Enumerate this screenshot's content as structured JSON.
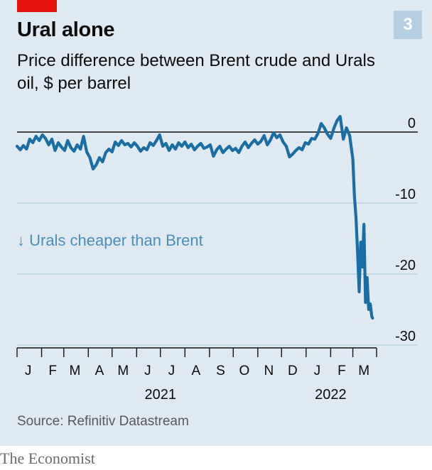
{
  "header": {
    "title": "Ural alone",
    "subtitle": "Price difference between Brent crude and Urals oil, $ per barrel",
    "badge": "3"
  },
  "footer": {
    "source": "Source: Refinitiv Datastream",
    "brand": "The Economist"
  },
  "colors": {
    "panel": "#dfe9f1",
    "line": "#1a6ea4",
    "annotation": "#4a8fb5",
    "tag": "#e3120b",
    "badge": "#b7cfe2"
  },
  "chart_data": {
    "type": "line",
    "title": "Ural alone",
    "subtitle": "Price difference between Brent crude and Urals oil, $ per barrel",
    "ylim": [
      -30,
      0
    ],
    "y_ticks": [
      0,
      -10,
      -20,
      -30
    ],
    "y_tick_labels": [
      "0",
      "-10",
      "-20",
      "-30"
    ],
    "x_range": [
      "2021-01-01",
      "2022-03-31"
    ],
    "x_tick_labels": [
      "J",
      "F",
      "M",
      "A",
      "M",
      "J",
      "J",
      "A",
      "S",
      "O",
      "N",
      "D",
      "J",
      "F",
      "M"
    ],
    "x_tick_dates": [
      "2021-01-15",
      "2021-02-15",
      "2021-03-15",
      "2021-04-15",
      "2021-05-15",
      "2021-06-15",
      "2021-07-15",
      "2021-08-15",
      "2021-09-15",
      "2021-10-15",
      "2021-11-15",
      "2021-12-15",
      "2022-01-15",
      "2022-02-15",
      "2022-03-15"
    ],
    "year_labels": [
      {
        "label": "2021",
        "date": "2021-07-01"
      },
      {
        "label": "2022",
        "date": "2022-02-01"
      }
    ],
    "annotation": "↓ Urals cheaper than Brent",
    "grid": true,
    "series": [
      {
        "points": [
          [
            "2021-01-01",
            -2.0
          ],
          [
            "2021-01-05",
            -2.5
          ],
          [
            "2021-01-09",
            -1.9
          ],
          [
            "2021-01-13",
            -2.4
          ],
          [
            "2021-01-17",
            -1.0
          ],
          [
            "2021-01-21",
            -1.5
          ],
          [
            "2021-01-25",
            -0.6
          ],
          [
            "2021-01-29",
            -1.2
          ],
          [
            "2021-02-02",
            -0.4
          ],
          [
            "2021-02-06",
            -0.9
          ],
          [
            "2021-02-10",
            -1.8
          ],
          [
            "2021-02-14",
            -1.0
          ],
          [
            "2021-02-18",
            -2.6
          ],
          [
            "2021-02-22",
            -1.5
          ],
          [
            "2021-02-26",
            -2.1
          ],
          [
            "2021-03-02",
            -2.6
          ],
          [
            "2021-03-06",
            -1.2
          ],
          [
            "2021-03-10",
            -2.2
          ],
          [
            "2021-03-14",
            -2.7
          ],
          [
            "2021-03-18",
            -1.8
          ],
          [
            "2021-03-22",
            -2.4
          ],
          [
            "2021-03-26",
            -0.6
          ],
          [
            "2021-03-30",
            -2.8
          ],
          [
            "2021-04-03",
            -3.6
          ],
          [
            "2021-04-07",
            -5.2
          ],
          [
            "2021-04-11",
            -4.6
          ],
          [
            "2021-04-15",
            -3.6
          ],
          [
            "2021-04-19",
            -4.2
          ],
          [
            "2021-04-23",
            -2.9
          ],
          [
            "2021-04-27",
            -2.4
          ],
          [
            "2021-05-01",
            -2.8
          ],
          [
            "2021-05-05",
            -1.4
          ],
          [
            "2021-05-09",
            -1.9
          ],
          [
            "2021-05-13",
            -1.2
          ],
          [
            "2021-05-17",
            -1.8
          ],
          [
            "2021-05-21",
            -1.6
          ],
          [
            "2021-05-25",
            -2.1
          ],
          [
            "2021-05-29",
            -1.5
          ],
          [
            "2021-06-02",
            -2.0
          ],
          [
            "2021-06-06",
            -2.7
          ],
          [
            "2021-06-10",
            -2.2
          ],
          [
            "2021-06-14",
            -2.5
          ],
          [
            "2021-06-18",
            -1.5
          ],
          [
            "2021-06-22",
            -1.9
          ],
          [
            "2021-06-26",
            -1.2
          ],
          [
            "2021-06-30",
            -0.4
          ],
          [
            "2021-07-04",
            -2.0
          ],
          [
            "2021-07-08",
            -1.6
          ],
          [
            "2021-07-12",
            -2.6
          ],
          [
            "2021-07-16",
            -1.8
          ],
          [
            "2021-07-20",
            -2.4
          ],
          [
            "2021-07-24",
            -1.5
          ],
          [
            "2021-07-28",
            -2.0
          ],
          [
            "2021-08-01",
            -1.4
          ],
          [
            "2021-08-05",
            -2.2
          ],
          [
            "2021-08-09",
            -1.7
          ],
          [
            "2021-08-13",
            -2.5
          ],
          [
            "2021-08-17",
            -2.0
          ],
          [
            "2021-08-21",
            -1.6
          ],
          [
            "2021-08-25",
            -2.3
          ],
          [
            "2021-08-29",
            -2.1
          ],
          [
            "2021-09-02",
            -1.8
          ],
          [
            "2021-09-06",
            -3.4
          ],
          [
            "2021-09-10",
            -2.5
          ],
          [
            "2021-09-14",
            -2.0
          ],
          [
            "2021-09-18",
            -2.9
          ],
          [
            "2021-09-22",
            -2.4
          ],
          [
            "2021-09-26",
            -2.0
          ],
          [
            "2021-09-30",
            -2.6
          ],
          [
            "2021-10-04",
            -2.3
          ],
          [
            "2021-10-08",
            -2.9
          ],
          [
            "2021-10-12",
            -2.0
          ],
          [
            "2021-10-16",
            -1.4
          ],
          [
            "2021-10-20",
            -2.2
          ],
          [
            "2021-10-24",
            -1.6
          ],
          [
            "2021-10-28",
            -1.1
          ],
          [
            "2021-11-01",
            -1.7
          ],
          [
            "2021-11-05",
            -1.3
          ],
          [
            "2021-11-09",
            -0.5
          ],
          [
            "2021-11-13",
            -1.8
          ],
          [
            "2021-11-17",
            -1.1
          ],
          [
            "2021-11-21",
            -0.1
          ],
          [
            "2021-11-25",
            -0.8
          ],
          [
            "2021-11-29",
            -0.4
          ],
          [
            "2021-12-03",
            -1.4
          ],
          [
            "2021-12-07",
            -2.0
          ],
          [
            "2021-12-11",
            -3.5
          ],
          [
            "2021-12-15",
            -3.1
          ],
          [
            "2021-12-19",
            -2.6
          ],
          [
            "2021-12-23",
            -2.2
          ],
          [
            "2021-12-27",
            -2.5
          ],
          [
            "2021-12-31",
            -1.5
          ],
          [
            "2022-01-04",
            -1.7
          ],
          [
            "2022-01-08",
            -0.9
          ],
          [
            "2022-01-12",
            -1.0
          ],
          [
            "2022-01-16",
            -0.2
          ],
          [
            "2022-01-20",
            1.2
          ],
          [
            "2022-01-24",
            0.6
          ],
          [
            "2022-01-28",
            -0.3
          ],
          [
            "2022-02-01",
            -0.9
          ],
          [
            "2022-02-05",
            0.5
          ],
          [
            "2022-02-09",
            1.6
          ],
          [
            "2022-02-13",
            2.2
          ],
          [
            "2022-02-17",
            -1.0
          ],
          [
            "2022-02-21",
            0.6
          ],
          [
            "2022-02-25",
            -0.5
          ],
          [
            "2022-03-01",
            -3.8
          ],
          [
            "2022-03-03",
            -9.0
          ],
          [
            "2022-03-05",
            -12.0
          ],
          [
            "2022-03-07",
            -17.0
          ],
          [
            "2022-03-09",
            -22.5
          ],
          [
            "2022-03-11",
            -15.5
          ],
          [
            "2022-03-13",
            -19.0
          ],
          [
            "2022-03-15",
            -13.0
          ],
          [
            "2022-03-17",
            -24.0
          ],
          [
            "2022-03-19",
            -20.5
          ],
          [
            "2022-03-21",
            -25.0
          ],
          [
            "2022-03-23",
            -24.2
          ],
          [
            "2022-03-25",
            -26.0
          ],
          [
            "2022-03-26",
            -26.2
          ]
        ]
      }
    ]
  }
}
